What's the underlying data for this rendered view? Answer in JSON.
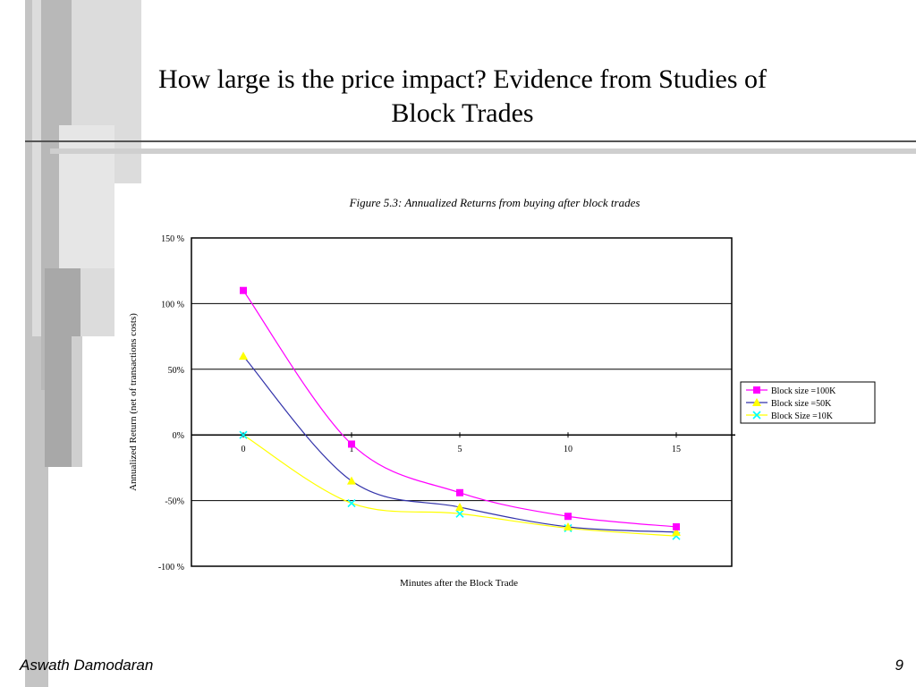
{
  "slide": {
    "title_line1": "How large is the price impact? Evidence from Studies of",
    "title_line2": "Block Trades",
    "footer_author": "Aswath Damodaran",
    "page_number": "9"
  },
  "chart_data": {
    "type": "line",
    "title": "Figure 5.3: Annualized Returns from buying after block trades",
    "xlabel": "Minutes after the Block Trade",
    "ylabel": "Annualized Return (net of transactions costs)",
    "x": [
      0,
      1,
      5,
      10,
      15
    ],
    "categories": [
      "0",
      "1",
      "5",
      "10",
      "15"
    ],
    "ylim": [
      -100,
      150
    ],
    "yticks": [
      150,
      100,
      50,
      0,
      -50,
      -100
    ],
    "ytick_labels": [
      "150 %",
      "100 %",
      "50%",
      "0%",
      "-50%",
      "-100 %"
    ],
    "grid": true,
    "legend_position": "right",
    "series": [
      {
        "name": "Block size =100K",
        "values": [
          110,
          -7,
          -44,
          -62,
          -70
        ],
        "color": "#ff00ff",
        "marker": "square"
      },
      {
        "name": "Block size =50K",
        "values": [
          60,
          -35,
          -55,
          -70,
          -74
        ],
        "color": "#ffff00",
        "line_color": "#3333aa",
        "marker": "triangle"
      },
      {
        "name": "Block Size =10K",
        "values": [
          0,
          -52,
          -60,
          -71,
          -77
        ],
        "color": "#00ffff",
        "line_color": "#ffff00",
        "marker": "x"
      }
    ]
  }
}
